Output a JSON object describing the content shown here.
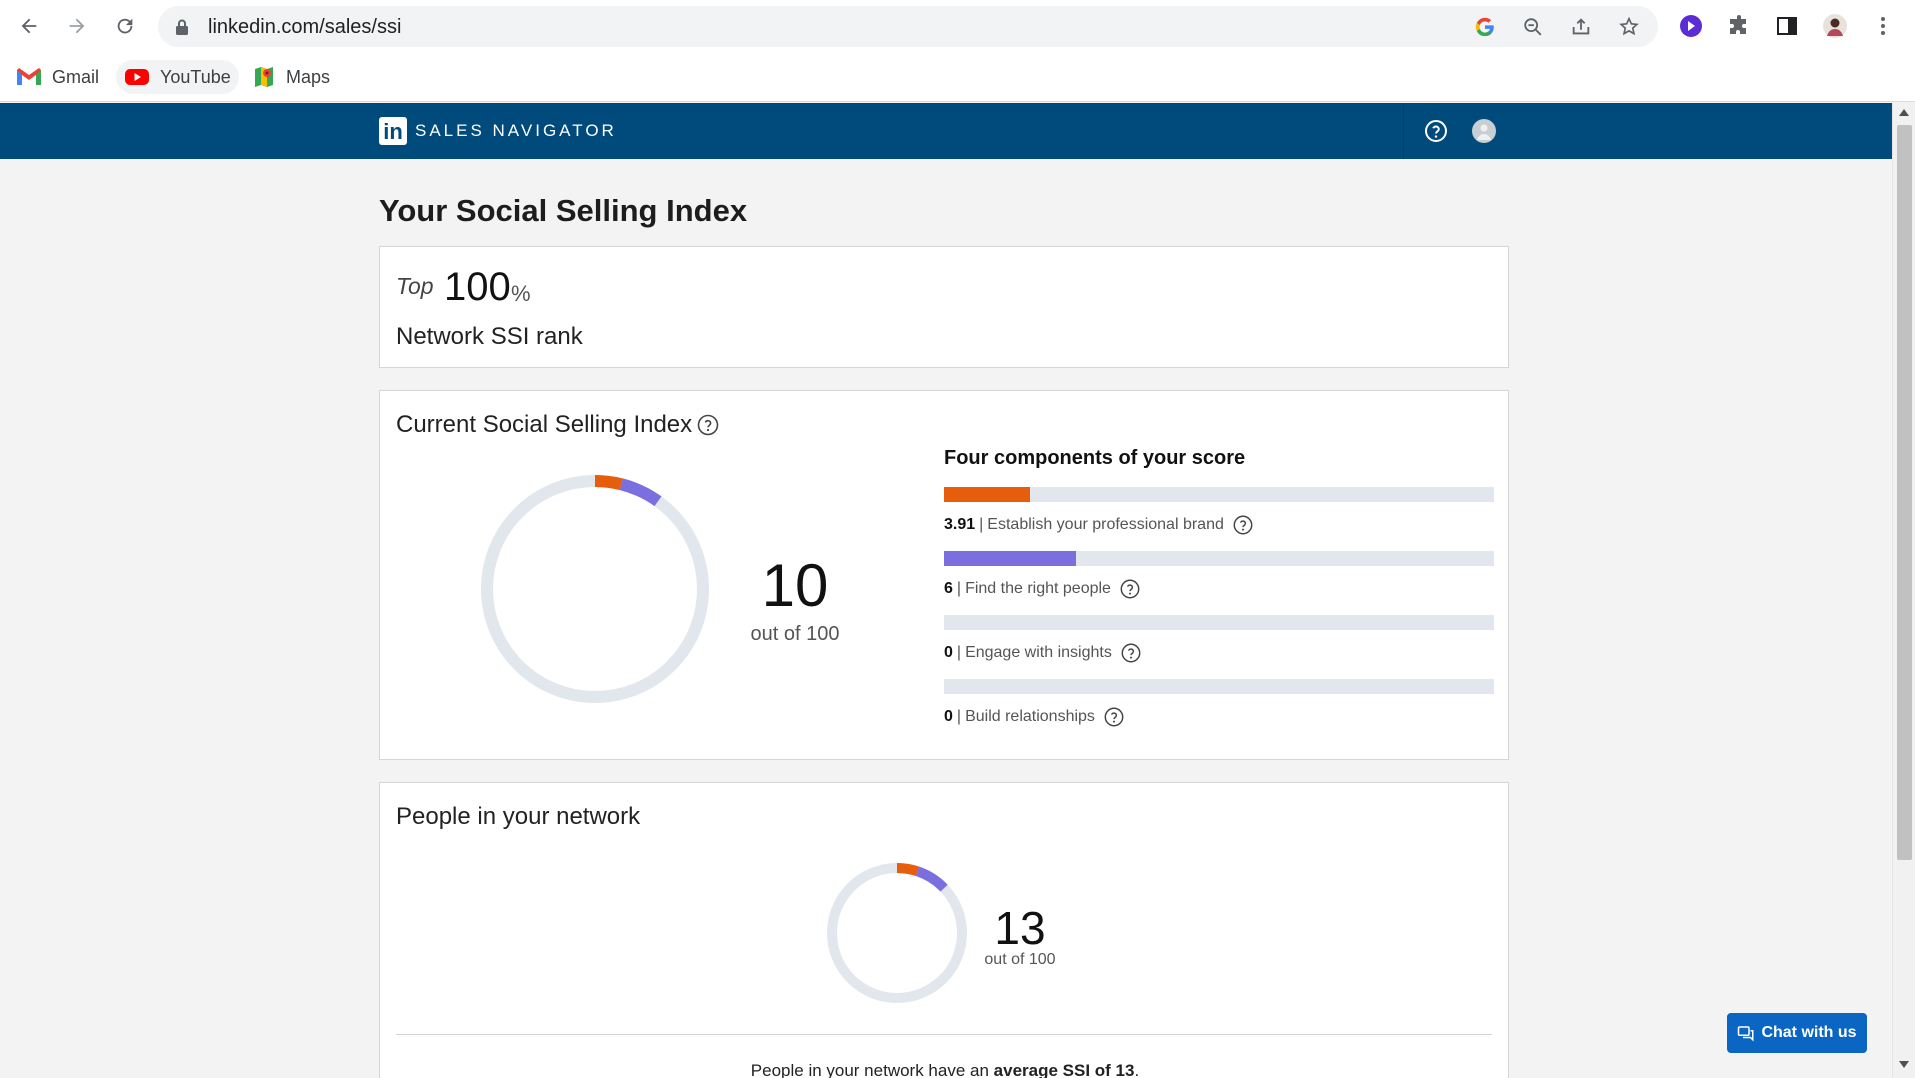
{
  "browser": {
    "url": "linkedin.com/sales/ssi",
    "bookmarks": [
      {
        "label": "Gmail",
        "icon": "gmail-icon"
      },
      {
        "label": "YouTube",
        "icon": "youtube-icon"
      },
      {
        "label": "Maps",
        "icon": "maps-icon"
      }
    ]
  },
  "app": {
    "brand": "SALES NAVIGATOR",
    "logo_letters": "in",
    "colors": {
      "header": "#004b7c",
      "brand_component": "#e65e0c",
      "people_component": "#7b6fe0",
      "track": "#e1e7ed"
    }
  },
  "page": {
    "title": "Your Social Selling Index"
  },
  "rank": {
    "prefix": "Top",
    "value": "100",
    "unit": "%",
    "label": "Network SSI rank"
  },
  "ssi": {
    "title": "Current Social Selling Index",
    "score": "10",
    "out_of": "out of 100",
    "components_title": "Four components of your score",
    "components": [
      {
        "value": "3.91",
        "label": "Establish your professional brand",
        "fraction": 0.1564,
        "color": "#e65e0c"
      },
      {
        "value": "6",
        "label": "Find the right people",
        "fraction": 0.24,
        "color": "#7b6fe0"
      },
      {
        "value": "0",
        "label": "Engage with insights",
        "fraction": 0,
        "color": "#3a9bd9"
      },
      {
        "value": "0",
        "label": "Build relationships",
        "fraction": 0,
        "color": "#2e8b57"
      }
    ]
  },
  "network": {
    "title": "People in your network",
    "score": "13",
    "out_of": "out of 100",
    "summary_prefix": "People in your network have an ",
    "summary_bold": "average SSI of 13",
    "summary_suffix": "."
  },
  "chat": {
    "label": "Chat with us"
  }
}
